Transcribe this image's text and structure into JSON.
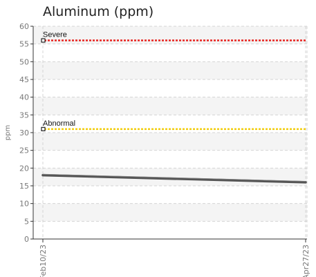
{
  "chart_data": {
    "type": "line",
    "title": "Aluminum (ppm)",
    "xlabel": "",
    "ylabel": "ppm",
    "ylim": [
      0,
      60
    ],
    "yticks": [
      0,
      5,
      10,
      15,
      20,
      25,
      30,
      35,
      40,
      45,
      50,
      55,
      60
    ],
    "x_tick_labels": [
      "Feb10/23",
      "Apr27/23"
    ],
    "grid": true,
    "series": [
      {
        "values_start": 18.0,
        "values_end": 16.0,
        "color": "#555555"
      }
    ],
    "thresholds": [
      {
        "name": "Severe",
        "value": 56,
        "color": "#e8231f"
      },
      {
        "name": "Abnormal",
        "value": 31,
        "color": "#f2cd0c"
      }
    ]
  }
}
